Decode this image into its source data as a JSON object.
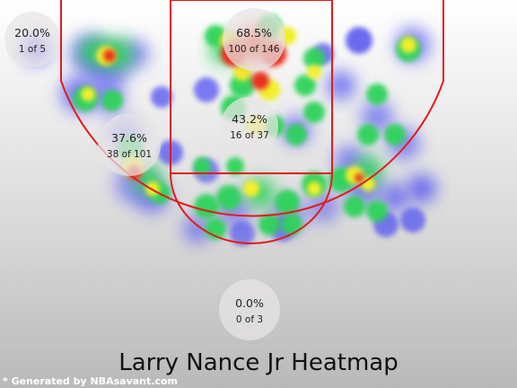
{
  "chart_data": {
    "type": "heatmap",
    "title": "Larry Nance Jr Heatmap",
    "credit": "* Generated by NBAsavant.com",
    "colors": {
      "court_line": "#e31b1b",
      "background_top": "#ffffff",
      "background_bottom": "#b9b9b9"
    },
    "zones": [
      {
        "name": "left-corner-three",
        "pct": "20.0%",
        "made_of": "1 of 5"
      },
      {
        "name": "paint",
        "pct": "68.5%",
        "made_of": "100 of 146"
      },
      {
        "name": "mid-range",
        "pct": "43.2%",
        "made_of": "16 of 37"
      },
      {
        "name": "left-wing",
        "pct": "37.6%",
        "made_of": "38 of 101"
      },
      {
        "name": "backcourt",
        "pct": "0.0%",
        "made_of": "0 of 3"
      }
    ]
  }
}
